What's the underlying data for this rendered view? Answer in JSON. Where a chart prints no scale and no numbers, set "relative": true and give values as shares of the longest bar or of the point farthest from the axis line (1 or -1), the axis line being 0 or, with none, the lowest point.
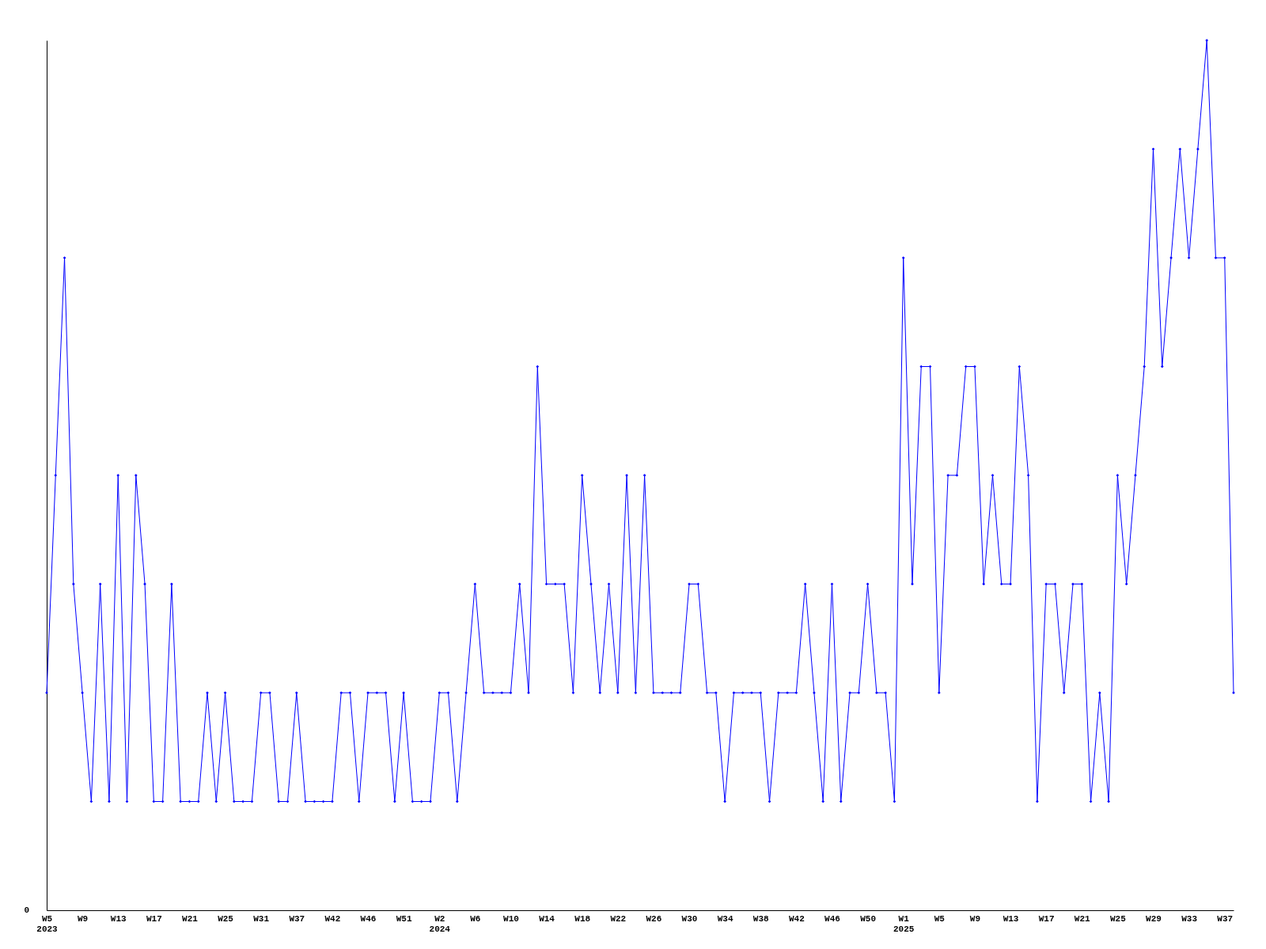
{
  "chart_data": {
    "type": "line",
    "relative": true,
    "marker": "diamond",
    "line_style": "solid",
    "grid": false,
    "annotations": [
      "0"
    ],
    "categories": [
      "W5\n2023",
      null,
      null,
      null,
      "W9",
      null,
      null,
      null,
      "W13",
      null,
      null,
      null,
      "W17",
      null,
      null,
      null,
      "W21",
      null,
      null,
      null,
      "W25",
      null,
      null,
      null,
      "W31",
      null,
      null,
      null,
      "W37",
      null,
      null,
      null,
      "W42",
      null,
      null,
      null,
      "W46",
      null,
      null,
      null,
      "W51",
      null,
      null,
      null,
      "W2\n2024",
      null,
      null,
      null,
      "W6",
      null,
      null,
      null,
      "W10",
      null,
      null,
      null,
      "W14",
      null,
      null,
      null,
      "W18",
      null,
      null,
      null,
      "W22",
      null,
      null,
      null,
      "W26",
      null,
      null,
      null,
      "W30",
      null,
      null,
      null,
      "W34",
      null,
      null,
      null,
      "W38",
      null,
      null,
      null,
      "W42",
      null,
      null,
      null,
      "W46",
      null,
      null,
      null,
      "W50",
      null,
      null,
      null,
      "W1\n2025",
      null,
      null,
      null,
      "W5",
      null,
      null,
      null,
      "W9",
      null,
      null,
      null,
      "W13",
      null,
      null,
      null,
      "W17",
      null,
      null,
      null,
      "W21",
      null,
      null,
      null,
      "W25",
      null,
      null,
      null,
      "W29",
      null,
      null,
      null,
      "W33",
      null,
      null,
      null,
      "W37",
      null
    ],
    "series": [
      {
        "color": "#0000ff",
        "values": [
          0.25,
          0.5,
          0.75,
          0.375,
          0.25,
          0.125,
          0.375,
          0.125,
          0.5,
          0.125,
          0.5,
          0.375,
          0.125,
          0.125,
          0.375,
          0.125,
          0.125,
          0.125,
          0.25,
          0.125,
          0.25,
          0.125,
          0.125,
          0.125,
          0.25,
          0.25,
          0.125,
          0.125,
          0.25,
          0.125,
          0.125,
          0.125,
          0.125,
          0.25,
          0.25,
          0.125,
          0.25,
          0.25,
          0.25,
          0.125,
          0.25,
          0.125,
          0.125,
          0.125,
          0.25,
          0.25,
          0.125,
          0.25,
          0.375,
          0.25,
          0.25,
          0.25,
          0.25,
          0.375,
          0.25,
          0.625,
          0.375,
          0.375,
          0.375,
          0.25,
          0.5,
          0.375,
          0.25,
          0.375,
          0.25,
          0.5,
          0.25,
          0.5,
          0.25,
          0.25,
          0.25,
          0.25,
          0.375,
          0.375,
          0.25,
          0.25,
          0.125,
          0.25,
          0.25,
          0.25,
          0.25,
          0.125,
          0.25,
          0.25,
          0.25,
          0.375,
          0.25,
          0.125,
          0.375,
          0.125,
          0.25,
          0.25,
          0.375,
          0.25,
          0.25,
          0.125,
          0.75,
          0.375,
          0.625,
          0.625,
          0.25,
          0.5,
          0.5,
          0.625,
          0.625,
          0.375,
          0.5,
          0.375,
          0.375,
          0.625,
          0.5,
          0.125,
          0.375,
          0.375,
          0.25,
          0.375,
          0.375,
          0.125,
          0.25,
          0.125,
          0.5,
          0.375,
          0.5,
          0.625,
          0.875,
          0.625,
          0.75,
          0.875,
          0.75,
          0.875,
          1,
          0.75,
          0.75,
          0.25
        ]
      }
    ]
  }
}
